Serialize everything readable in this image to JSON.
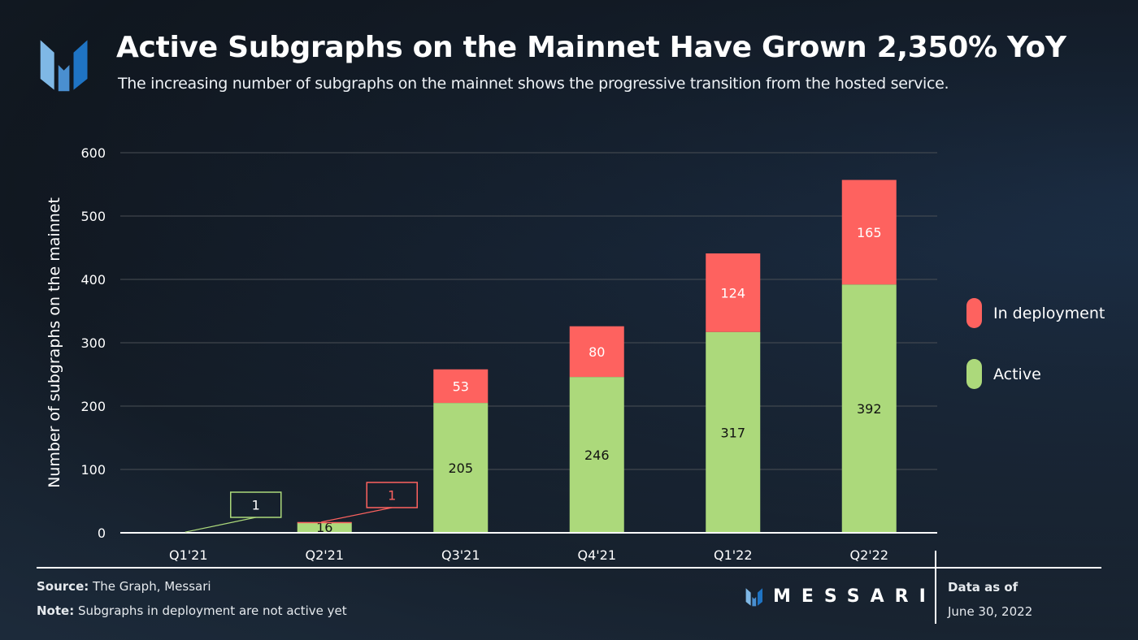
{
  "header": {
    "title": "Active Subgraphs on the Mainnet Have Grown 2,350% YoY",
    "subtitle": "The increasing number of subgraphs on the mainnet shows the progressive transition from the hosted service.",
    "logo_icon": "messari-logo-icon"
  },
  "chart_data": {
    "type": "bar",
    "stacked": true,
    "title": "Active Subgraphs on the Mainnet Have Grown 2,350% YoY",
    "xlabel": "",
    "ylabel": "Number of subgraphs on the mainnet",
    "ylim": [
      0,
      600
    ],
    "yticks": [
      0,
      100,
      200,
      300,
      400,
      500,
      600
    ],
    "grid": true,
    "legend_placement": "right",
    "categories": [
      "Q1'21",
      "Q2'21",
      "Q3'21",
      "Q4'21",
      "Q1'22",
      "Q2'22"
    ],
    "series": [
      {
        "name": "Active",
        "color": "#acd97b",
        "values": [
          1,
          16,
          205,
          246,
          317,
          392
        ],
        "label_color": "#111111"
      },
      {
        "name": "In deployment",
        "color": "#fe625f",
        "values": [
          0,
          1,
          53,
          80,
          124,
          165
        ],
        "label_color": "#ffffff"
      }
    ],
    "callouts": [
      {
        "category": "Q1'21",
        "series": "Active",
        "text": "1",
        "color": "#acd97b"
      },
      {
        "category": "Q2'21",
        "series": "In deployment",
        "text": "1",
        "color": "#fe625f"
      }
    ]
  },
  "legend": [
    {
      "label": "In deployment",
      "color": "#fe625f"
    },
    {
      "label": "Active",
      "color": "#acd97b"
    }
  ],
  "footer": {
    "source_label": "Source:",
    "source_text": "The Graph, Messari",
    "note_label": "Note:",
    "note_text": "Subgraphs in deployment are not active yet",
    "brand": "MESSARI",
    "data_as_of_label": "Data as of",
    "data_as_of_date": "June 30, 2022"
  }
}
